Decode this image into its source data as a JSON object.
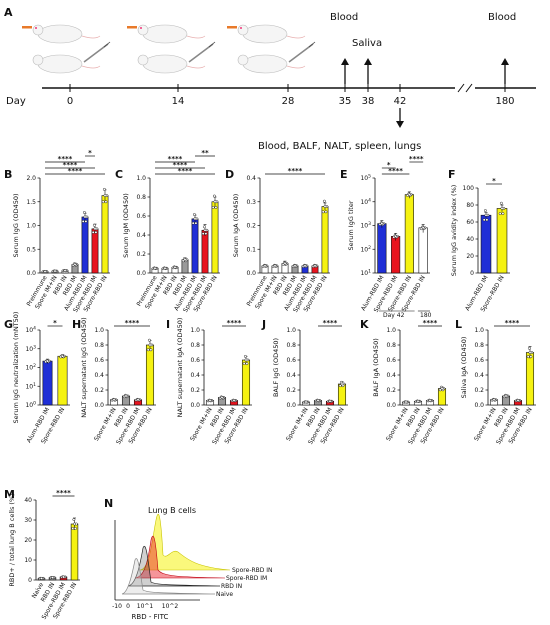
{
  "colors": {
    "white": "#ffffff",
    "grey_light": "#d9d9d9",
    "grey": "#9a9a9a",
    "blue": "#1f2fd6",
    "red": "#e8141e",
    "yellow": "#f5f211",
    "hist_naive": "#9a9a9a",
    "hist_rbd": "#222222",
    "hist_spore_im": "#e8141e",
    "hist_spore_in": "#f5f211"
  },
  "timeline": {
    "panel": "A",
    "day_label": "Day",
    "ticks": [
      "0",
      "14",
      "28",
      "35",
      "38",
      "42",
      "180"
    ],
    "events": {
      "blood1": "Blood",
      "saliva": "Saliva",
      "blood2": "Blood",
      "terminal": "Blood, BALF, NALT, spleen, lungs"
    }
  },
  "panels": {
    "B": {
      "letter": "B",
      "ylabel": "Serum IgG (OD450)",
      "yticks": [
        "0.0",
        "0.5",
        "1.0",
        "1.5",
        "2.0"
      ],
      "ylim": [
        0,
        2.0
      ],
      "groups": [
        "Preimmune",
        "Spore IM+IN",
        "RBD IN",
        "RBD IM",
        "Alum-RBD IM",
        "Spore-RBD IM",
        "Spore-RBD IN"
      ],
      "colors": [
        "white",
        "white",
        "white",
        "grey",
        "blue",
        "red",
        "yellow"
      ],
      "values": [
        0.03,
        0.04,
        0.05,
        0.18,
        1.18,
        0.93,
        1.63
      ],
      "errors": [
        0.01,
        0.01,
        0.01,
        0.03,
        0.08,
        0.1,
        0.12
      ],
      "sig": [
        {
          "from": 0,
          "to": 6,
          "label": "****"
        },
        {
          "from": 0,
          "to": 5,
          "label": "****"
        },
        {
          "from": 0,
          "to": 4,
          "label": "****"
        },
        {
          "from": 4,
          "to": 5,
          "label": "*"
        }
      ]
    },
    "C": {
      "letter": "C",
      "ylabel": "Serum IgM (OD450)",
      "yticks": [
        "0.0",
        "0.2",
        "0.4",
        "0.6",
        "0.8",
        "1.0"
      ],
      "ylim": [
        0,
        1.0
      ],
      "groups": [
        "Preimmune",
        "Spore IM+IN",
        "RBD IN",
        "RBD IM",
        "Alum-RBD IM",
        "Spore-RBD IM",
        "Spore-RBD IN"
      ],
      "colors": [
        "white",
        "white",
        "white",
        "grey",
        "blue",
        "red",
        "yellow"
      ],
      "values": [
        0.05,
        0.05,
        0.06,
        0.14,
        0.57,
        0.45,
        0.75
      ],
      "errors": [
        0.01,
        0.01,
        0.01,
        0.02,
        0.04,
        0.06,
        0.05
      ],
      "sig": [
        {
          "from": 0,
          "to": 6,
          "label": "****"
        },
        {
          "from": 0,
          "to": 5,
          "label": "****"
        },
        {
          "from": 0,
          "to": 4,
          "label": "****"
        },
        {
          "from": 4,
          "to": 6,
          "label": "**"
        }
      ]
    },
    "D": {
      "letter": "D",
      "ylabel": "Serum IgA (OD450)",
      "yticks": [
        "0.0",
        "0.1",
        "0.2",
        "0.3",
        "0.4"
      ],
      "ylim": [
        0,
        0.4
      ],
      "groups": [
        "Preimmune",
        "Spore IM+IN",
        "RBD IN",
        "RBD IM",
        "Alum-RBD IM",
        "Spore-RBD IM",
        "Spore-RBD IN"
      ],
      "colors": [
        "white",
        "white",
        "white",
        "grey",
        "blue",
        "red",
        "yellow"
      ],
      "values": [
        0.03,
        0.03,
        0.04,
        0.03,
        0.03,
        0.03,
        0.28
      ],
      "errors": [
        0.005,
        0.005,
        0.01,
        0.005,
        0.005,
        0.005,
        0.015
      ],
      "sig": [
        {
          "from": 0,
          "to": 6,
          "label": "****"
        }
      ]
    },
    "E": {
      "letter": "E",
      "ylabel": "Serum IgG titer",
      "yticks": [
        "10^1",
        "10^2",
        "10^3",
        "10^4",
        "10^5"
      ],
      "log": true,
      "ylim": [
        10,
        100000
      ],
      "groups": [
        "Alum-RBD IM",
        "Spore-RBD IM",
        "Spore-RBD IN",
        "Spore-RBD IN"
      ],
      "colors": [
        "blue",
        "red",
        "yellow",
        "white"
      ],
      "values": [
        1200,
        350,
        20000,
        800
      ],
      "errors": [
        400,
        120,
        6000,
        300
      ],
      "day_label": "Day 42",
      "day_label2": "180",
      "sig": [
        {
          "from": 0,
          "to": 2,
          "label": "****"
        },
        {
          "from": 0,
          "to": 1,
          "label": "*"
        },
        {
          "from": 2,
          "to": 3,
          "label": "****"
        }
      ]
    },
    "F": {
      "letter": "F",
      "ylabel": "Serum IgG avidity index (%)",
      "yticks": [
        "0",
        "20",
        "40",
        "60",
        "80",
        "100"
      ],
      "ylim": [
        0,
        100
      ],
      "groups": [
        "Alum-RBD IM",
        "Spore-RBD IN"
      ],
      "colors": [
        "blue",
        "yellow"
      ],
      "values": [
        68,
        76
      ],
      "errors": [
        3,
        4
      ],
      "sig": [
        {
          "from": 0,
          "to": 1,
          "label": "*"
        }
      ]
    },
    "G": {
      "letter": "G",
      "ylabel": "Serum IgG neutralization (mNT50)",
      "yticks": [
        "10^0",
        "10^1",
        "10^2",
        "10^3",
        "10^4"
      ],
      "log": true,
      "ylim": [
        1,
        10000
      ],
      "groups": [
        "Alum-RBD IM",
        "Spore-RBD IN"
      ],
      "colors": [
        "blue",
        "yellow"
      ],
      "values": [
        220,
        400
      ],
      "errors": [
        60,
        80
      ],
      "sig": [
        {
          "from": 0,
          "to": 1,
          "label": "*"
        }
      ]
    },
    "H": {
      "letter": "H",
      "ylabel": "NALT supernatant IgG (OD450)",
      "yticks": [
        "0.0",
        "0.2",
        "0.4",
        "0.6",
        "0.8",
        "1.0"
      ],
      "ylim": [
        0,
        1.0
      ],
      "groups": [
        "Spore IM+IN",
        "RBD IN",
        "Spore-RBD IM",
        "Spore-RBD IN"
      ],
      "colors": [
        "white",
        "grey",
        "red",
        "yellow"
      ],
      "values": [
        0.07,
        0.12,
        0.07,
        0.8
      ],
      "errors": [
        0.01,
        0.01,
        0.01,
        0.06
      ],
      "sig": [
        {
          "from": 0,
          "to": 3,
          "label": "****"
        }
      ]
    },
    "I": {
      "letter": "I",
      "ylabel": "NALT supernatant IgA (OD450)",
      "yticks": [
        "0.0",
        "0.2",
        "0.4",
        "0.6",
        "0.8",
        "1.0"
      ],
      "ylim": [
        0,
        1.0
      ],
      "groups": [
        "Spore IM+IN",
        "RBD IN",
        "Spore-RBD IM",
        "Spore-RBD IN"
      ],
      "colors": [
        "white",
        "grey",
        "red",
        "yellow"
      ],
      "values": [
        0.06,
        0.1,
        0.06,
        0.6
      ],
      "errors": [
        0.01,
        0.015,
        0.01,
        0.05
      ],
      "sig": [
        {
          "from": 1,
          "to": 3,
          "label": "****"
        }
      ]
    },
    "J": {
      "letter": "J",
      "ylabel": "BALF IgG (OD450)",
      "yticks": [
        "0.0",
        "0.2",
        "0.4",
        "0.6",
        "0.8",
        "1.0"
      ],
      "ylim": [
        0,
        1.0
      ],
      "groups": [
        "Spore IM+IN",
        "RBD IN",
        "Spore-RBD IM",
        "Spore-RBD IN"
      ],
      "colors": [
        "white",
        "grey",
        "red",
        "yellow"
      ],
      "values": [
        0.04,
        0.06,
        0.05,
        0.28
      ],
      "errors": [
        0.005,
        0.01,
        0.005,
        0.03
      ],
      "sig": [
        {
          "from": 1,
          "to": 3,
          "label": "****"
        }
      ]
    },
    "K": {
      "letter": "K",
      "ylabel": "BALF IgA (OD450)",
      "yticks": [
        "0.0",
        "0.2",
        "0.4",
        "0.6",
        "0.8",
        "1.0"
      ],
      "ylim": [
        0,
        1.0
      ],
      "groups": [
        "Spore IM+IN",
        "RBD IN",
        "Spore-RBD IM",
        "Spore-RBD IN"
      ],
      "colors": [
        "white",
        "white",
        "white",
        "yellow"
      ],
      "values": [
        0.04,
        0.05,
        0.06,
        0.22
      ],
      "errors": [
        0.005,
        0.005,
        0.01,
        0.02
      ],
      "sig": [
        {
          "from": 1,
          "to": 3,
          "label": "****"
        }
      ]
    },
    "L": {
      "letter": "L",
      "ylabel": "Saliva IgA (OD450)",
      "yticks": [
        "0.0",
        "0.2",
        "0.4",
        "0.6",
        "0.8",
        "1.0"
      ],
      "ylim": [
        0,
        1.0
      ],
      "groups": [
        "Spore IM+IN",
        "RBD IN",
        "Spore-RBD IM",
        "Spore-RBD IN"
      ],
      "colors": [
        "white",
        "grey",
        "red",
        "yellow"
      ],
      "values": [
        0.07,
        0.12,
        0.06,
        0.7
      ],
      "errors": [
        0.01,
        0.015,
        0.01,
        0.08
      ],
      "sig": [
        {
          "from": 0,
          "to": 3,
          "label": "****"
        }
      ]
    },
    "M": {
      "letter": "M",
      "ylabel": "RBD+ / total lung B cells (%)",
      "yticks": [
        "0",
        "10",
        "20",
        "30",
        "40"
      ],
      "ylim": [
        0,
        40
      ],
      "groups": [
        "Naive",
        "RBD IN",
        "Spore-RBD IM",
        "Spore-RBD IN"
      ],
      "colors": [
        "white",
        "grey",
        "red",
        "yellow"
      ],
      "values": [
        0.8,
        1.2,
        1.5,
        28
      ],
      "errors": [
        0.2,
        0.3,
        0.3,
        3
      ],
      "sig": [
        {
          "from": 1,
          "to": 3,
          "label": "****"
        }
      ]
    },
    "N": {
      "letter": "N",
      "title": "Lung B cells",
      "xlabel": "RBD - FITC",
      "xticks": [
        "-10",
        "0",
        "10^1",
        "10^2"
      ],
      "legend": [
        "Spore-RBD IN",
        "Spore-RBD IM",
        "RBD IN",
        "Naive"
      ]
    }
  }
}
